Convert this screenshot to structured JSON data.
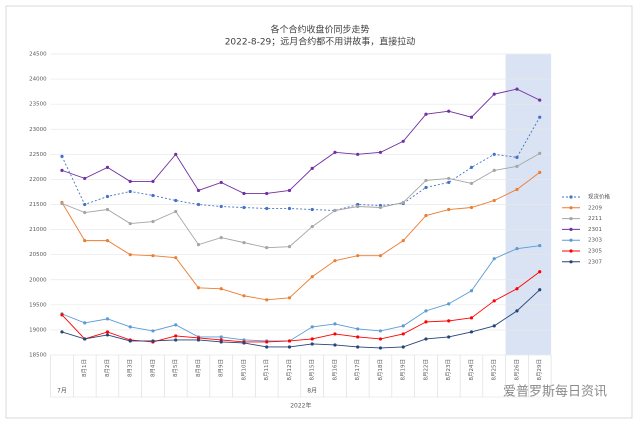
{
  "chart_data": {
    "type": "line",
    "title": "各个合约收盘价同步走势",
    "subtitle": "2022-8-29；远月合约都不用讲故事，直接拉动",
    "categories": [
      null,
      "8月1日",
      "8月2日",
      "8月3日",
      "8月4日",
      "8月5日",
      "8月8日",
      "8月9日",
      "8月10日",
      "8月11日",
      "8月12日",
      "8月15日",
      "8月16日",
      "8月17日",
      "8月18日",
      "8月19日",
      "8月22日",
      "8月23日",
      "8月24日",
      "8月25日",
      "8月26日",
      "8月29日"
    ],
    "x_groups": [
      "7月",
      "8月"
    ],
    "x_year": "2022年",
    "ylim": [
      18500,
      24500
    ],
    "yticks": [
      18500,
      19000,
      19500,
      20000,
      20500,
      21000,
      21500,
      22000,
      22500,
      23000,
      23500,
      24000,
      24500
    ],
    "grid": true,
    "legend": "right",
    "watermark": "爱普罗斯每日资讯",
    "series": [
      {
        "name": "现货价格",
        "color": "#4472c4",
        "dashed": true,
        "values": [
          22460,
          21500,
          21660,
          21760,
          21680,
          21580,
          21500,
          21460,
          21440,
          21420,
          21420,
          21400,
          21380,
          21500,
          21480,
          21520,
          21840,
          21940,
          22240,
          22500,
          22440,
          23240
        ]
      },
      {
        "name": "2209",
        "color": "#ed7d31",
        "values": [
          21540,
          20780,
          20780,
          20500,
          20480,
          20440,
          19840,
          19820,
          19680,
          19600,
          19640,
          20060,
          20380,
          20480,
          20480,
          20780,
          21280,
          21400,
          21440,
          21580,
          21800,
          22140
        ]
      },
      {
        "name": "2211",
        "color": "#a5a5a5",
        "values": [
          21520,
          21340,
          21400,
          21120,
          21160,
          21360,
          20700,
          20840,
          20740,
          20640,
          20660,
          21060,
          21380,
          21460,
          21440,
          21540,
          21980,
          22020,
          21920,
          22180,
          22260,
          22520
        ]
      },
      {
        "name": "2301",
        "color": "#7030a0",
        "values": [
          22180,
          22020,
          22240,
          21960,
          21960,
          22500,
          21780,
          21940,
          21720,
          21720,
          21780,
          22220,
          22540,
          22500,
          22540,
          22760,
          23300,
          23360,
          23240,
          23700,
          23800,
          23580
        ]
      },
      {
        "name": "2303",
        "color": "#5b9bd5",
        "values": [
          19320,
          19140,
          19220,
          19060,
          18980,
          19100,
          18860,
          18860,
          18800,
          18780,
          18780,
          19060,
          19120,
          19020,
          18980,
          19080,
          19380,
          19520,
          19780,
          20420,
          20620,
          20680
        ]
      },
      {
        "name": "2305",
        "color": "#ff0000",
        "values": [
          19300,
          18820,
          18960,
          18800,
          18760,
          18880,
          18840,
          18800,
          18760,
          18760,
          18780,
          18820,
          18920,
          18860,
          18820,
          18920,
          19160,
          19180,
          19240,
          19580,
          19820,
          20160
        ]
      },
      {
        "name": "2307",
        "color": "#264478",
        "values": [
          18960,
          18820,
          18900,
          18780,
          18780,
          18800,
          18800,
          18760,
          18740,
          18660,
          18660,
          18720,
          18700,
          18660,
          18640,
          18660,
          18820,
          18860,
          18960,
          19080,
          19380,
          19800
        ]
      }
    ]
  }
}
